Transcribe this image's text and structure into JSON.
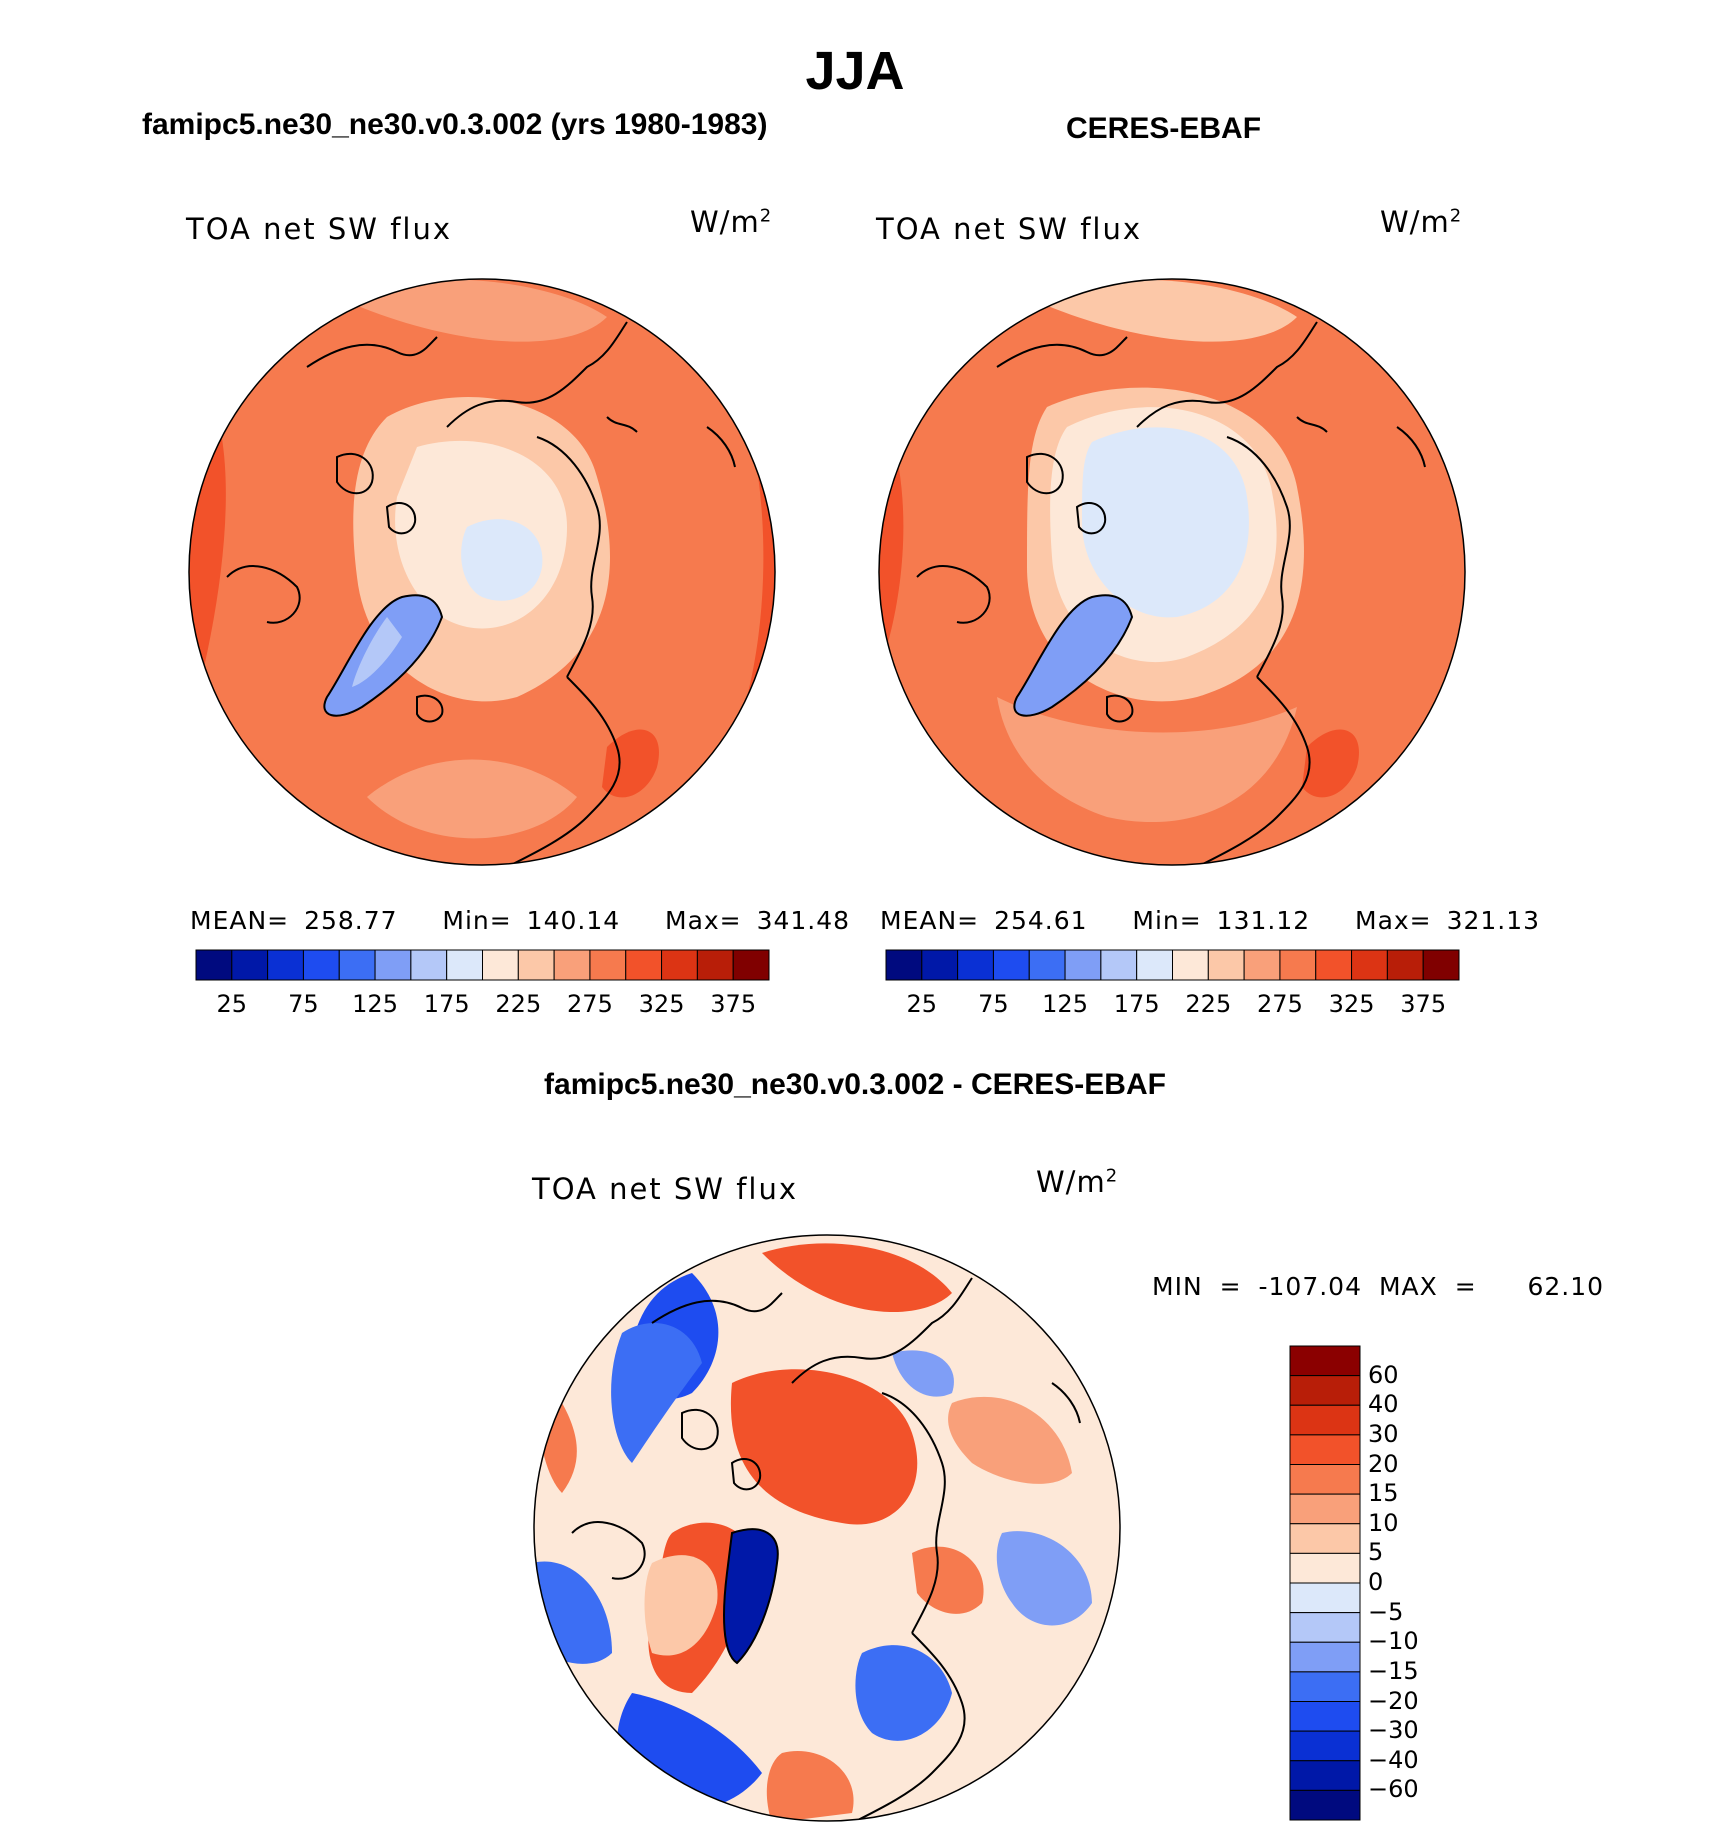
{
  "title": "JJA",
  "panels": [
    {
      "id": "model",
      "title": "famipc5.ne30_ne30.v0.3.002 (yrs 1980-1983)",
      "variable": "TOA net SW flux",
      "units_base": "W/m",
      "units_exp": "2",
      "stats": {
        "mean_label": "MEAN=",
        "mean": "258.77",
        "min_label": "Min=",
        "min": "140.14",
        "max_label": "Max=",
        "max": "341.48"
      }
    },
    {
      "id": "obs",
      "title": "CERES-EBAF",
      "variable": "TOA net SW flux",
      "units_base": "W/m",
      "units_exp": "2",
      "stats": {
        "mean_label": "MEAN=",
        "mean": "254.61",
        "min_label": "Min=",
        "min": "131.12",
        "max_label": "Max=",
        "max": "321.13"
      }
    }
  ],
  "colorbar_top": {
    "colors": [
      "#000a7f",
      "#0018a8",
      "#0a30d4",
      "#1e4cf0",
      "#3c6ef4",
      "#7f9ef6",
      "#b4c8f8",
      "#dce8fa",
      "#fde8d8",
      "#fcc8a8",
      "#f9a07a",
      "#f67a4e",
      "#f2522a",
      "#dc3414",
      "#b81e08",
      "#800000"
    ],
    "ticks": [
      "25",
      "75",
      "125",
      "175",
      "225",
      "275",
      "325",
      "375"
    ]
  },
  "diff": {
    "title": "famipc5.ne30_ne30.v0.3.002 - CERES-EBAF",
    "variable": "TOA net SW flux",
    "units_base": "W/m",
    "units_exp": "2",
    "minmax": {
      "min_label": "MIN =",
      "min": "-107.04",
      "max_label": "MAX =",
      "max": "62.10"
    },
    "colorbar": {
      "colors_top_to_bottom": [
        "#8b0000",
        "#b81e08",
        "#dc3414",
        "#f2522a",
        "#f67a4e",
        "#f9a07a",
        "#fcc8a8",
        "#fde8d8",
        "#dce8fa",
        "#b4c8f8",
        "#7f9ef6",
        "#3c6ef4",
        "#1e4cf0",
        "#0a30d4",
        "#0018a8",
        "#000a7f"
      ],
      "ticks_top_to_bottom": [
        "60",
        "40",
        "30",
        "20",
        "15",
        "10",
        "5",
        "0",
        "-5",
        "-10",
        "-15",
        "-20",
        "-30",
        "-40",
        "-60"
      ]
    }
  },
  "colors": {
    "land_outline": "#000000",
    "model_base": "#f67a4e",
    "obs_base": "#f67a4e",
    "diff_base": "#fde8d8"
  }
}
